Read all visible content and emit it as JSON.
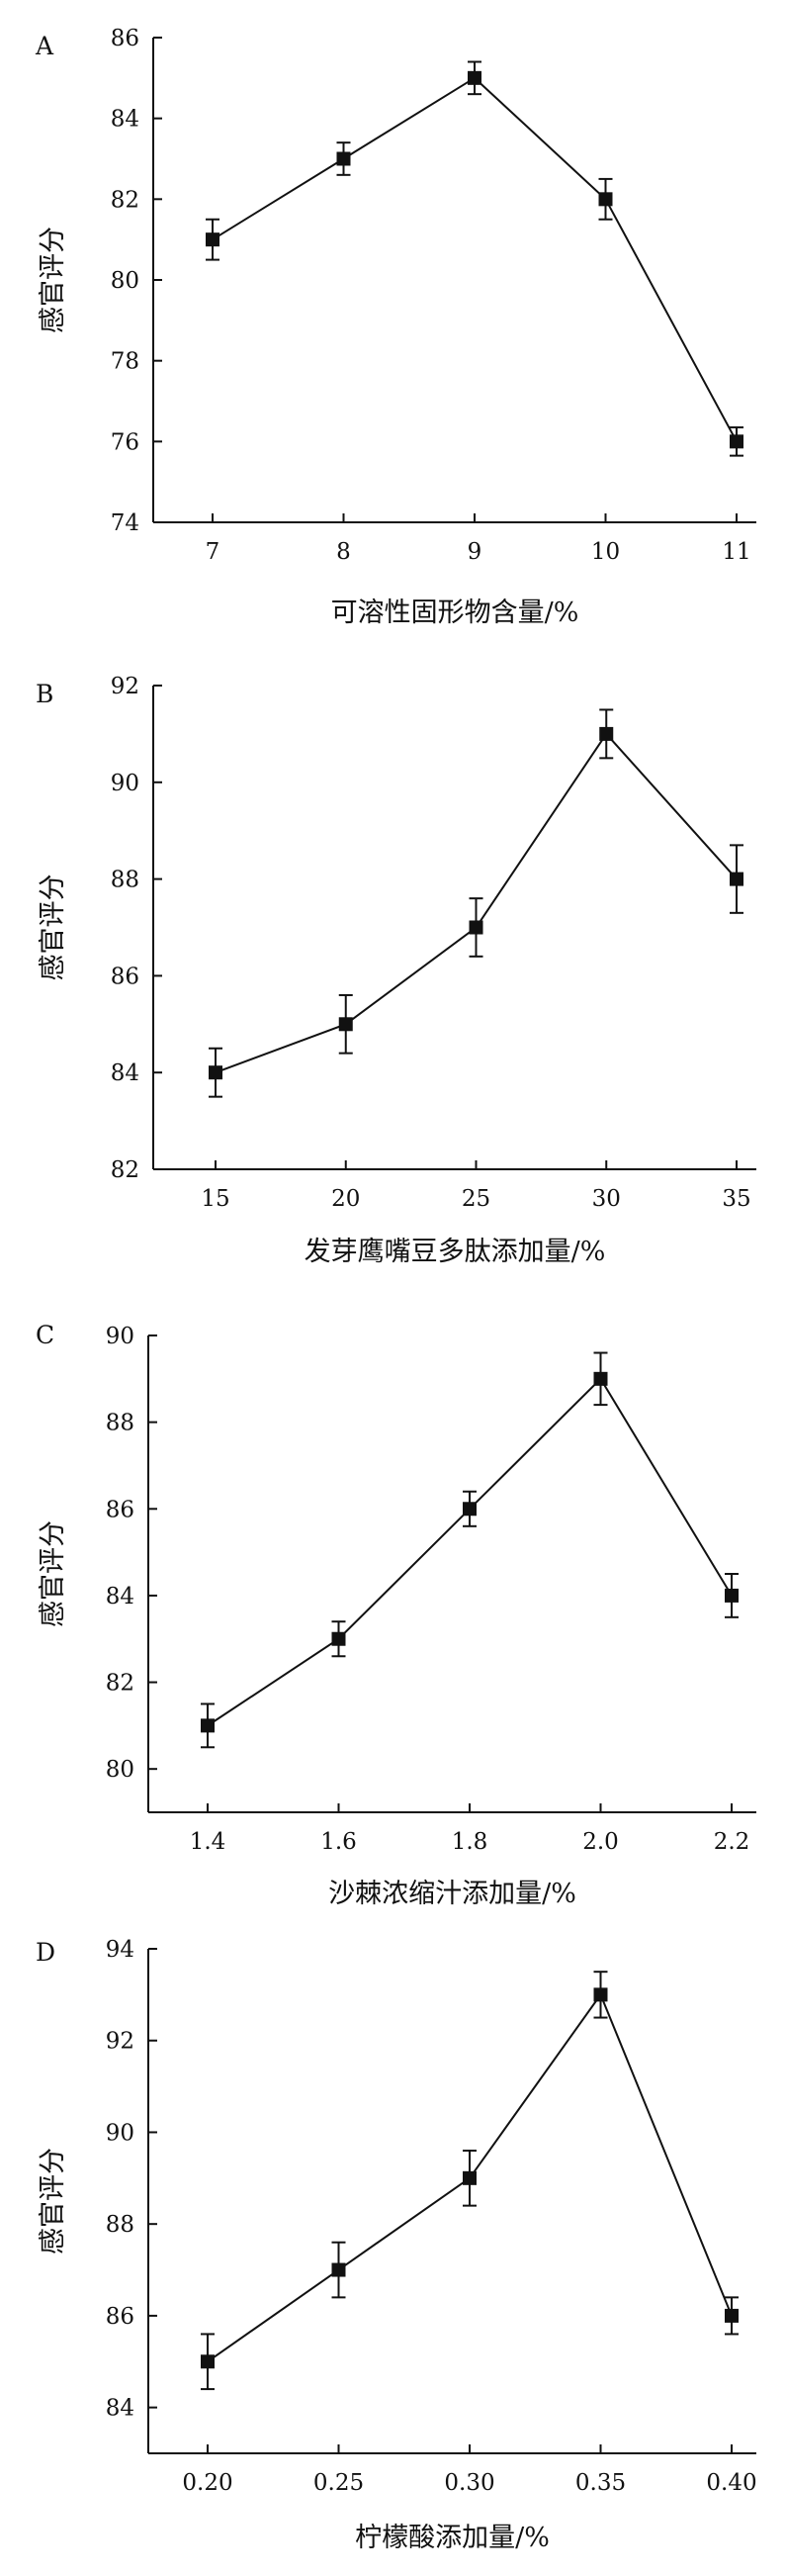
{
  "chart_data": [
    {
      "type": "line",
      "panel_label": "A",
      "xlabel": "可溶性固形物含量/%",
      "ylabel": "感官评分",
      "categories": [
        "7",
        "8",
        "9",
        "10",
        "11"
      ],
      "series": [
        {
          "values": [
            81,
            83,
            85,
            82,
            76
          ],
          "errors": [
            0.5,
            0.4,
            0.4,
            0.5,
            0.35
          ]
        }
      ],
      "ylim": [
        74,
        86
      ],
      "yticks": [
        74,
        76,
        78,
        80,
        82,
        84,
        86
      ],
      "grid": false,
      "marker": "square",
      "color": "#111111"
    },
    {
      "type": "line",
      "panel_label": "B",
      "xlabel": "发芽鹰嘴豆多肽添加量/%",
      "ylabel": "感官评分",
      "categories": [
        "15",
        "20",
        "25",
        "30",
        "35"
      ],
      "series": [
        {
          "values": [
            84,
            85,
            87,
            91,
            88
          ],
          "errors": [
            0.5,
            0.6,
            0.6,
            0.5,
            0.7
          ]
        }
      ],
      "ylim": [
        82,
        92
      ],
      "yticks": [
        82,
        84,
        86,
        88,
        90,
        92
      ],
      "grid": false,
      "marker": "square",
      "color": "#111111"
    },
    {
      "type": "line",
      "panel_label": "C",
      "xlabel": "沙棘浓缩汁添加量/%",
      "ylabel": "感官评分",
      "categories": [
        "1.4",
        "1.6",
        "1.8",
        "2.0",
        "2.2"
      ],
      "series": [
        {
          "values": [
            81,
            83,
            86,
            89,
            84
          ],
          "errors": [
            0.5,
            0.4,
            0.4,
            0.6,
            0.5
          ]
        }
      ],
      "ylim": [
        79,
        90
      ],
      "yticks": [
        80,
        82,
        84,
        86,
        88,
        90
      ],
      "grid": false,
      "marker": "square",
      "color": "#111111"
    },
    {
      "type": "line",
      "panel_label": "D",
      "xlabel": "柠檬酸添加量/%",
      "ylabel": "感官评分",
      "categories": [
        "0.20",
        "0.25",
        "0.30",
        "0.35",
        "0.40"
      ],
      "series": [
        {
          "values": [
            85,
            87,
            89,
            93,
            86
          ],
          "errors": [
            0.6,
            0.6,
            0.6,
            0.5,
            0.4
          ]
        }
      ],
      "ylim": [
        83,
        94
      ],
      "yticks": [
        84,
        86,
        88,
        90,
        92,
        94
      ],
      "grid": false,
      "marker": "square",
      "color": "#111111"
    }
  ]
}
